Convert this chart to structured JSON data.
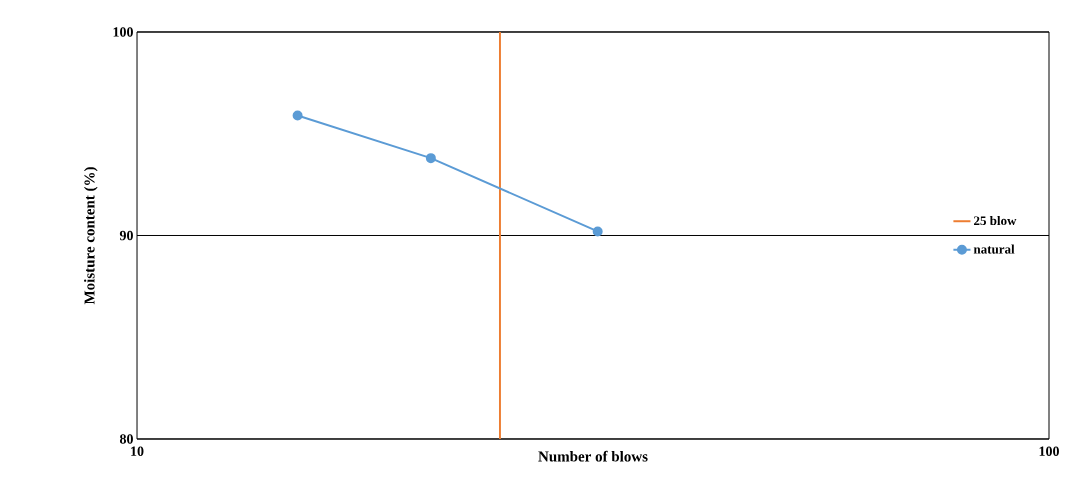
{
  "chart_data": {
    "type": "line",
    "xlabel": "Number of blows",
    "ylabel": "Moisture content (%)",
    "log": "x",
    "xlim": [
      10,
      100
    ],
    "xticks": [
      10,
      100
    ],
    "ylim": [
      80,
      100
    ],
    "yticks": [
      80,
      90,
      100
    ],
    "grid": "y",
    "legend": "right",
    "marker": "circle",
    "series": [
      {
        "name": "25 blow",
        "color": "#ed7d31",
        "x": [
          25,
          25
        ],
        "values": [
          80,
          100
        ],
        "marker": "none"
      },
      {
        "name": "natural",
        "color": "#5b9bd5",
        "x": [
          15,
          21,
          32
        ],
        "values": [
          95.9,
          93.8,
          90.2
        ]
      }
    ]
  }
}
